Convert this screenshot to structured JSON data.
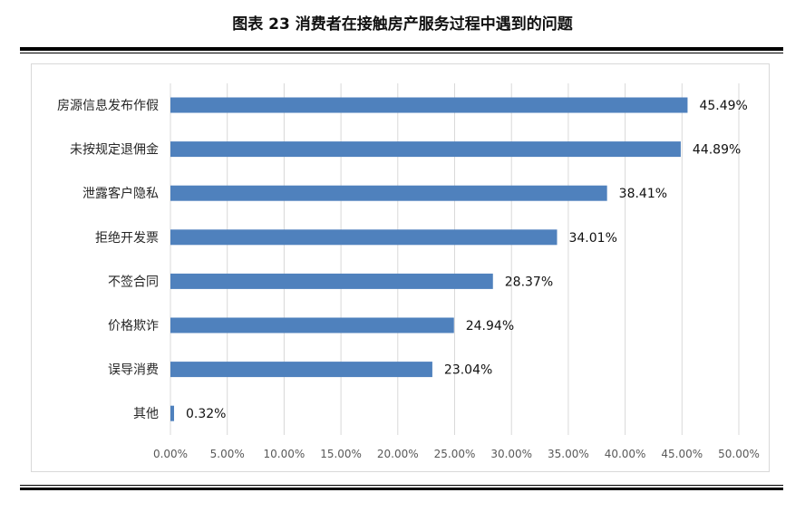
{
  "title": "图表 23  消费者在接触房产服务过程中遇到的问题",
  "colors": {
    "bar": "#4f81bd",
    "grid": "#d9d9d9",
    "rule": "#000000"
  },
  "chart_data": {
    "type": "bar",
    "orientation": "horizontal",
    "categories": [
      "房源信息发布作假",
      "未按规定退佣金",
      "泄露客户隐私",
      "拒绝开发票",
      "不签合同",
      "价格欺诈",
      "误导消费",
      "其他"
    ],
    "values": [
      45.49,
      44.89,
      38.41,
      34.01,
      28.37,
      24.94,
      23.04,
      0.32
    ],
    "value_labels": [
      "45.49%",
      "44.89%",
      "38.41%",
      "34.01%",
      "28.37%",
      "24.94%",
      "23.04%",
      "0.32%"
    ],
    "xlim": [
      0,
      50
    ],
    "x_ticks": [
      "0.00%",
      "5.00%",
      "10.00%",
      "15.00%",
      "20.00%",
      "25.00%",
      "30.00%",
      "35.00%",
      "40.00%",
      "45.00%",
      "50.00%"
    ],
    "grid": true,
    "legend": "none"
  }
}
